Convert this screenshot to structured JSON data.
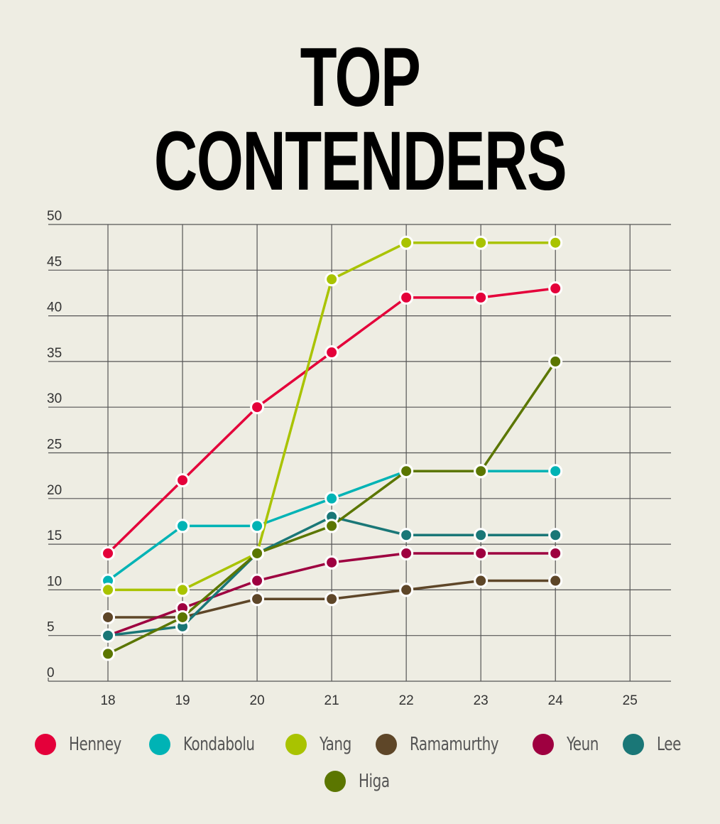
{
  "chart_data": {
    "type": "line",
    "title": "TOP CONTENDERS",
    "xlabel": "",
    "ylabel": "",
    "x": [
      18,
      19,
      20,
      21,
      22,
      23,
      24
    ],
    "xticks": [
      18,
      19,
      20,
      21,
      22,
      23,
      24,
      25
    ],
    "yticks": [
      0,
      5,
      10,
      15,
      20,
      25,
      30,
      35,
      40,
      45,
      50
    ],
    "xlim": [
      17.2,
      25.55
    ],
    "ylim": [
      0,
      50
    ],
    "grid": true,
    "legend": "bottom",
    "series": [
      {
        "name": "Henney",
        "color": "#e4003a",
        "values": [
          14,
          22,
          30,
          36,
          42,
          42,
          43
        ]
      },
      {
        "name": "Kondabolu",
        "color": "#00b3b5",
        "values": [
          11,
          17,
          17,
          20,
          23,
          23,
          23
        ]
      },
      {
        "name": "Yang",
        "color": "#a9c300",
        "values": [
          10,
          10,
          14,
          44,
          48,
          48,
          48
        ]
      },
      {
        "name": "Ramamurthy",
        "color": "#5e4628",
        "values": [
          7,
          7,
          9,
          9,
          10,
          11,
          11
        ]
      },
      {
        "name": "Yeun",
        "color": "#9e0040",
        "values": [
          5,
          8,
          11,
          13,
          14,
          14,
          14
        ]
      },
      {
        "name": "Lee",
        "color": "#1a7777",
        "values": [
          5,
          6,
          14,
          18,
          16,
          16,
          16
        ]
      },
      {
        "name": "Higa",
        "color": "#5b7600",
        "values": [
          3,
          7,
          14,
          17,
          23,
          23,
          35
        ]
      }
    ]
  }
}
